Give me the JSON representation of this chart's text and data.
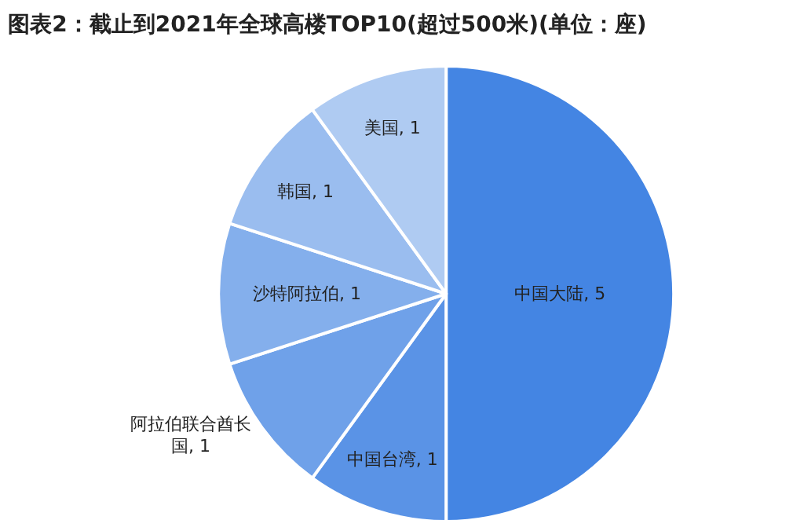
{
  "chart_data": {
    "type": "pie",
    "title": "图表2：截止到2021年全球高楼TOP10(超过500米)(单位：座)",
    "categories": [
      "中国大陆",
      "中国台湾",
      "阿拉伯联合酋长国",
      "沙特阿拉伯",
      "韩国",
      "美国"
    ],
    "values": [
      5,
      1,
      1,
      1,
      1,
      1
    ],
    "colors": [
      "#4485e3",
      "#5a93e6",
      "#6fa1e9",
      "#84afec",
      "#9abdef",
      "#afcbf2"
    ],
    "value_labels": [
      "5",
      "1",
      "1",
      "1",
      "1",
      "1"
    ],
    "legend": false
  }
}
